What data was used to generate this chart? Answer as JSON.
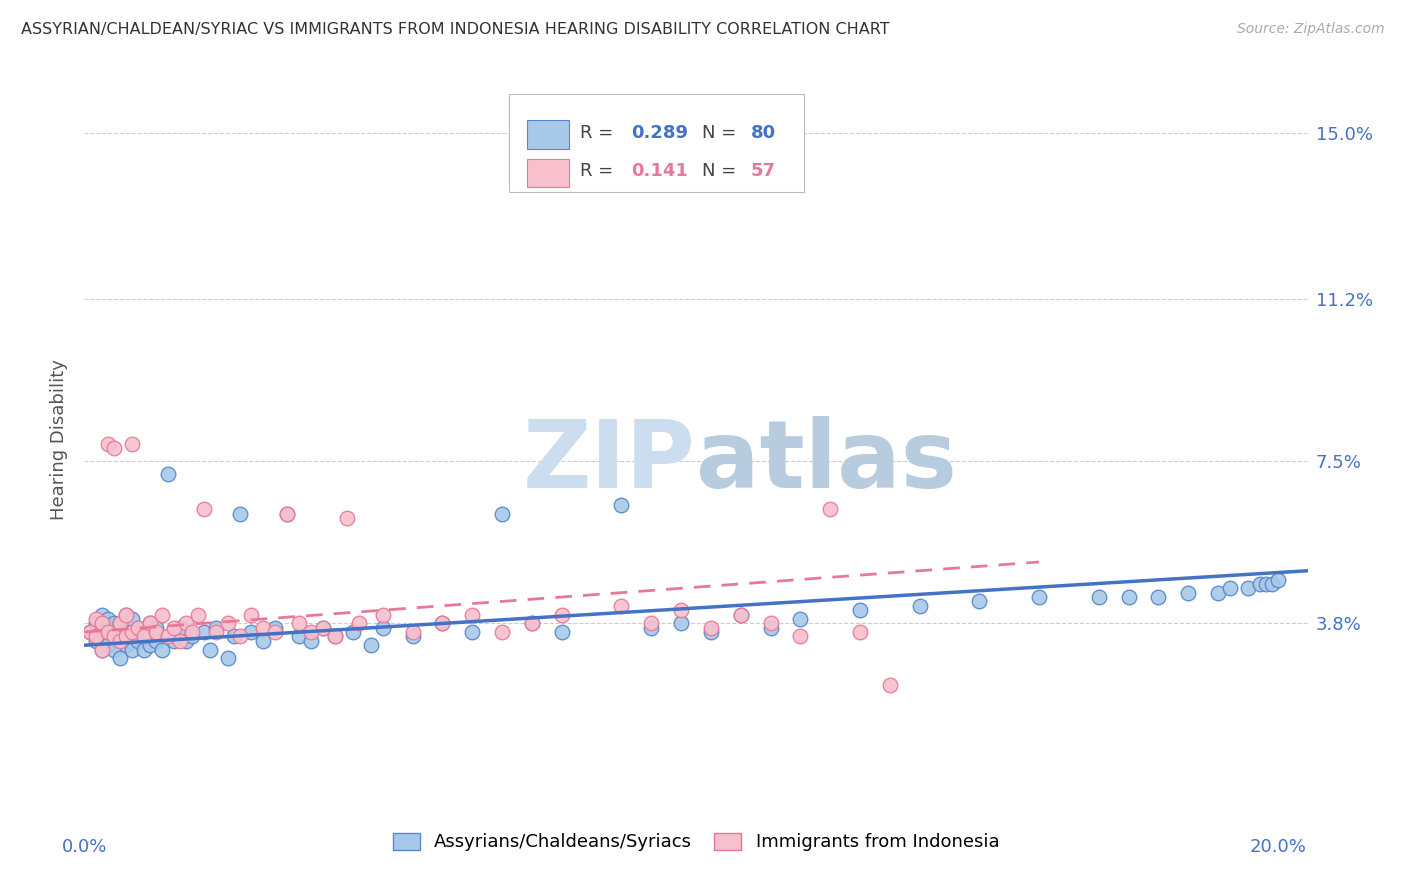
{
  "title": "ASSYRIAN/CHALDEAN/SYRIAC VS IMMIGRANTS FROM INDONESIA HEARING DISABILITY CORRELATION CHART",
  "source": "Source: ZipAtlas.com",
  "ylabel": "Hearing Disability",
  "xlim": [
    0.0,
    0.205
  ],
  "ylim": [
    -0.005,
    0.165
  ],
  "ytick_vals": [
    0.038,
    0.075,
    0.112,
    0.15
  ],
  "ytick_labels": [
    "3.8%",
    "7.5%",
    "11.2%",
    "15.0%"
  ],
  "blue_R": 0.289,
  "blue_N": 80,
  "pink_R": 0.141,
  "pink_N": 57,
  "blue_label": "Assyrians/Chaldeans/Syriacs",
  "pink_label": "Immigrants from Indonesia",
  "blue_color": "#a8c8e8",
  "pink_color": "#f8c0cc",
  "blue_edge_color": "#5588cc",
  "pink_edge_color": "#e87898",
  "blue_line_color": "#4472c4",
  "pink_line_color": "#e87898",
  "grid_color": "#cccccc",
  "watermark_color": "#d0dff0",
  "background_color": "#ffffff",
  "blue_scatter_x": [
    0.001,
    0.002,
    0.002,
    0.003,
    0.003,
    0.003,
    0.004,
    0.004,
    0.004,
    0.005,
    0.005,
    0.005,
    0.006,
    0.006,
    0.006,
    0.007,
    0.007,
    0.007,
    0.008,
    0.008,
    0.008,
    0.009,
    0.009,
    0.01,
    0.01,
    0.011,
    0.011,
    0.012,
    0.012,
    0.013,
    0.014,
    0.015,
    0.016,
    0.017,
    0.018,
    0.02,
    0.021,
    0.022,
    0.024,
    0.025,
    0.026,
    0.028,
    0.03,
    0.032,
    0.034,
    0.036,
    0.038,
    0.04,
    0.042,
    0.045,
    0.048,
    0.05,
    0.055,
    0.06,
    0.065,
    0.07,
    0.075,
    0.08,
    0.09,
    0.095,
    0.1,
    0.105,
    0.11,
    0.115,
    0.12,
    0.13,
    0.14,
    0.15,
    0.16,
    0.17,
    0.175,
    0.18,
    0.185,
    0.19,
    0.192,
    0.195,
    0.197,
    0.198,
    0.199,
    0.2
  ],
  "blue_scatter_y": [
    0.036,
    0.034,
    0.038,
    0.032,
    0.037,
    0.04,
    0.033,
    0.036,
    0.039,
    0.032,
    0.036,
    0.038,
    0.03,
    0.035,
    0.038,
    0.033,
    0.036,
    0.04,
    0.032,
    0.036,
    0.039,
    0.034,
    0.037,
    0.032,
    0.036,
    0.033,
    0.038,
    0.034,
    0.037,
    0.032,
    0.072,
    0.034,
    0.037,
    0.034,
    0.035,
    0.036,
    0.032,
    0.037,
    0.03,
    0.035,
    0.063,
    0.036,
    0.034,
    0.037,
    0.063,
    0.035,
    0.034,
    0.037,
    0.035,
    0.036,
    0.033,
    0.037,
    0.035,
    0.038,
    0.036,
    0.063,
    0.038,
    0.036,
    0.065,
    0.037,
    0.038,
    0.036,
    0.04,
    0.037,
    0.039,
    0.041,
    0.042,
    0.043,
    0.044,
    0.044,
    0.044,
    0.044,
    0.045,
    0.045,
    0.046,
    0.046,
    0.047,
    0.047,
    0.047,
    0.048
  ],
  "pink_scatter_x": [
    0.001,
    0.002,
    0.002,
    0.003,
    0.003,
    0.004,
    0.004,
    0.005,
    0.005,
    0.006,
    0.006,
    0.007,
    0.007,
    0.008,
    0.008,
    0.009,
    0.01,
    0.011,
    0.012,
    0.013,
    0.014,
    0.015,
    0.016,
    0.017,
    0.018,
    0.019,
    0.02,
    0.022,
    0.024,
    0.026,
    0.028,
    0.03,
    0.032,
    0.034,
    0.036,
    0.038,
    0.04,
    0.042,
    0.044,
    0.046,
    0.05,
    0.055,
    0.06,
    0.065,
    0.07,
    0.075,
    0.08,
    0.09,
    0.095,
    0.1,
    0.105,
    0.11,
    0.115,
    0.12,
    0.125,
    0.13,
    0.135
  ],
  "pink_scatter_y": [
    0.036,
    0.035,
    0.039,
    0.032,
    0.038,
    0.036,
    0.079,
    0.035,
    0.078,
    0.034,
    0.038,
    0.035,
    0.04,
    0.036,
    0.079,
    0.037,
    0.035,
    0.038,
    0.036,
    0.04,
    0.035,
    0.037,
    0.034,
    0.038,
    0.036,
    0.04,
    0.064,
    0.036,
    0.038,
    0.035,
    0.04,
    0.037,
    0.036,
    0.063,
    0.038,
    0.036,
    0.037,
    0.035,
    0.062,
    0.038,
    0.04,
    0.036,
    0.038,
    0.04,
    0.036,
    0.038,
    0.04,
    0.042,
    0.038,
    0.041,
    0.037,
    0.04,
    0.038,
    0.035,
    0.064,
    0.036,
    0.024
  ],
  "blue_trend_x": [
    0.0,
    0.205
  ],
  "blue_trend_y": [
    0.033,
    0.05
  ],
  "pink_trend_x": [
    0.0,
    0.16
  ],
  "pink_trend_y": [
    0.036,
    0.052
  ]
}
